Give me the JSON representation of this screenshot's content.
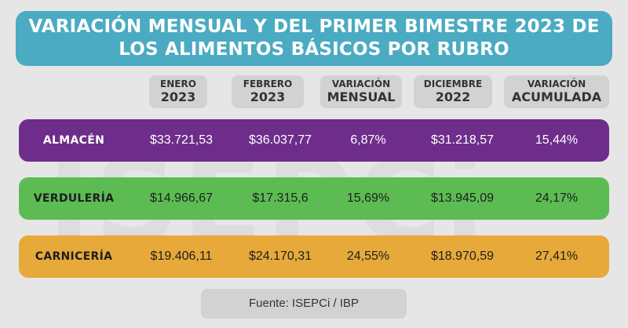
{
  "watermark": "ISEPCi",
  "title": {
    "line1": "VARIACIÓN MENSUAL Y DEL PRIMER BIMESTRE 2023 DE",
    "line2": "LOS ALIMENTOS BÁSICOS POR RUBRO"
  },
  "headers": [
    {
      "line1": "ENERO",
      "line2": "2023"
    },
    {
      "line1": "FEBRERO",
      "line2": "2023"
    },
    {
      "line1": "VARIACIÓN",
      "line2": "MENSUAL"
    },
    {
      "line1": "DICIEMBRE",
      "line2": "2022"
    },
    {
      "line1": "VARIACIÓN",
      "line2": "ACUMULADA"
    }
  ],
  "rows": [
    {
      "category": "ALMACÉN",
      "enero_2023": "$33.721,53",
      "febrero_2023": "$36.037,77",
      "variacion_mensual": "6,87%",
      "diciembre_2022": "$31.218,57",
      "variacion_acumulada": "15,44%",
      "color": "#6e2d8a"
    },
    {
      "category": "VERDULERÍA",
      "enero_2023": "$14.966,67",
      "febrero_2023": "$17.315,6",
      "variacion_mensual": "15,69%",
      "diciembre_2022": "$13.945,09",
      "variacion_acumulada": "24,17%",
      "color": "#5cbc53"
    },
    {
      "category": "CARNICERÍA",
      "enero_2023": "$19.406,11",
      "febrero_2023": "$24.170,31",
      "variacion_mensual": "24,55%",
      "diciembre_2022": "$18.970,59",
      "variacion_acumulada": "27,41%",
      "color": "#e7a93a"
    }
  ],
  "footer": "Fuente: ISEPCi / IBP",
  "colors": {
    "title_bg": "#4aabc2",
    "header_bg": "#d2d2d2",
    "page_bg": "#e6e6e6"
  }
}
